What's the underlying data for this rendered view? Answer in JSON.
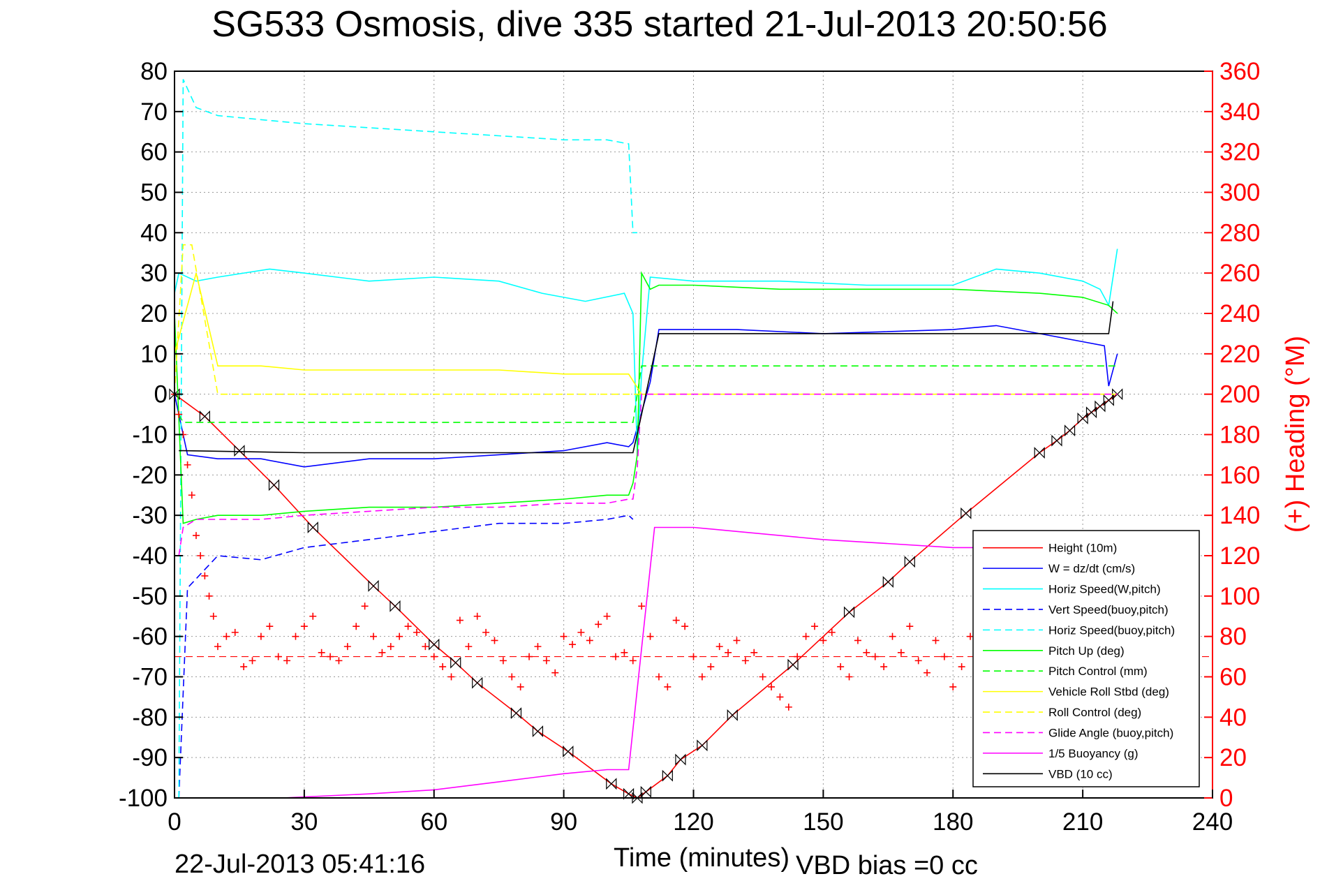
{
  "chart_data": {
    "type": "line",
    "title": "SG533 Osmosis, dive 335 started 21-Jul-2013 20:50:56",
    "xlabel": "Time (minutes)",
    "ylabel_right": "(+) Heading (°M)",
    "end_time_label": "22-Jul-2013 05:41:16",
    "vbd_bias_label": "VBD bias =0 cc",
    "xlim": [
      0,
      240
    ],
    "ylim_left": [
      -100,
      80
    ],
    "ylim_right": [
      0,
      360
    ],
    "x_ticks": [
      0,
      30,
      60,
      90,
      120,
      150,
      180,
      210,
      240
    ],
    "y_ticks_left": [
      80,
      70,
      60,
      50,
      40,
      30,
      20,
      10,
      0,
      -10,
      -20,
      -30,
      -40,
      -50,
      -60,
      -70,
      -80,
      -90,
      -100
    ],
    "y_ticks_right": [
      360,
      340,
      320,
      300,
      280,
      260,
      240,
      220,
      200,
      180,
      160,
      140,
      120,
      100,
      80,
      60,
      40,
      20,
      0
    ],
    "grid": true,
    "legend_position": "lower-right",
    "colors": {
      "red": "#ff0000",
      "blue": "#0000ff",
      "cyan": "#00ffff",
      "green": "#00ff00",
      "yellow": "#ffff00",
      "magenta": "#ff00ff",
      "black": "#000000"
    },
    "series": [
      {
        "name": "Height (10m)",
        "color": "#ff0000",
        "dash": "solid",
        "x": [
          0,
          7,
          15,
          23,
          32,
          46,
          51,
          60,
          65,
          70,
          79,
          84,
          91,
          101,
          105,
          107,
          109,
          114,
          117,
          122,
          129,
          143,
          156,
          165,
          170,
          183,
          200,
          204,
          207,
          210,
          212,
          214,
          216,
          218
        ],
        "y": [
          0,
          -5.5,
          -14,
          -22.5,
          -33,
          -47.5,
          -52.5,
          -62,
          -66.5,
          -71.5,
          -79,
          -83.5,
          -88.5,
          -96.5,
          -99,
          -100,
          -98.5,
          -94.5,
          -90.5,
          -87,
          -79.5,
          -67,
          -54,
          -46.5,
          -41.5,
          -29.5,
          -14.5,
          -11.5,
          -9,
          -6,
          -4.5,
          -3,
          -1.5,
          0
        ]
      },
      {
        "name": "W = dz/dt (cm/s)",
        "color": "#0000ff",
        "dash": "solid",
        "x": [
          0,
          1,
          3,
          10,
          20,
          30,
          45,
          60,
          75,
          90,
          100,
          105,
          106,
          110,
          112,
          120,
          130,
          150,
          180,
          190,
          200,
          210,
          215,
          216,
          218
        ],
        "y": [
          0,
          -5,
          -15,
          -16,
          -16,
          -18,
          -16,
          -16,
          -15,
          -14,
          -12,
          -13,
          -12,
          3,
          16,
          16,
          16,
          15,
          16,
          17,
          15,
          13,
          12,
          2,
          10
        ]
      },
      {
        "name": "Horiz Speed(W,pitch)",
        "color": "#00ffff",
        "dash": "solid",
        "x": [
          0,
          1,
          5,
          10,
          22,
          30,
          45,
          60,
          75,
          85,
          95,
          104,
          106,
          107,
          108,
          110,
          120,
          140,
          160,
          180,
          190,
          200,
          210,
          214,
          216,
          218
        ],
        "y": [
          25,
          30,
          28,
          29,
          31,
          30,
          28,
          29,
          28,
          25,
          23,
          25,
          20,
          -15,
          5,
          29,
          28,
          28,
          27,
          27,
          31,
          30,
          28,
          26,
          22,
          36
        ]
      },
      {
        "name": "Vert Speed(buoy,pitch)",
        "color": "#0000ff",
        "dash": "dashed",
        "x": [
          1,
          3,
          10,
          20,
          30,
          45,
          60,
          75,
          90,
          100,
          105,
          106
        ],
        "y": [
          -100,
          -48,
          -40,
          -41,
          -38,
          -36,
          -34,
          -32,
          -32,
          -31,
          -30,
          -31
        ]
      },
      {
        "name": "Horiz Speed(buoy,pitch)",
        "color": "#00ffff",
        "dash": "dashed",
        "x": [
          1,
          2,
          5,
          10,
          20,
          30,
          45,
          60,
          75,
          90,
          100,
          105,
          106,
          107
        ],
        "y": [
          -100,
          78,
          71,
          69,
          68,
          67,
          66,
          65,
          64,
          63,
          63,
          62,
          40,
          40
        ]
      },
      {
        "name": "Pitch Up (deg)",
        "color": "#00ff00",
        "dash": "solid",
        "x": [
          0,
          2,
          5,
          10,
          20,
          30,
          45,
          60,
          75,
          90,
          100,
          105,
          106,
          107,
          108,
          110,
          112,
          120,
          140,
          160,
          180,
          200,
          210,
          216,
          218
        ],
        "y": [
          20,
          -32,
          -31,
          -30,
          -30,
          -29,
          -28,
          -28,
          -27,
          -26,
          -25,
          -25,
          -22,
          -15,
          30,
          26,
          27,
          27,
          26,
          26,
          26,
          25,
          24,
          22,
          20
        ]
      },
      {
        "name": "Pitch Control (mm)",
        "color": "#00ff00",
        "dash": "dashed",
        "x": [
          1,
          2,
          10,
          30,
          60,
          90,
          106,
          108,
          110,
          130,
          160,
          200,
          218
        ],
        "y": [
          -5,
          -7,
          -7,
          -7,
          -7,
          -7,
          -7,
          7,
          7,
          7,
          7,
          7,
          7
        ]
      },
      {
        "name": "Vehicle Roll Stbd (deg)",
        "color": "#ffff00",
        "dash": "solid",
        "x": [
          0,
          5,
          10,
          20,
          30,
          45,
          60,
          75,
          90,
          100,
          105,
          108,
          110,
          120,
          150,
          180,
          200,
          210,
          215,
          218
        ],
        "y": [
          10,
          30,
          7,
          7,
          6,
          6,
          6,
          6,
          5,
          5,
          5,
          0,
          0,
          0,
          0,
          0,
          0,
          0,
          0,
          0
        ]
      },
      {
        "name": "Roll Control (deg)",
        "color": "#ffff00",
        "dash": "dashed",
        "x": [
          0,
          2,
          4,
          10,
          20,
          30,
          45,
          60,
          75,
          90,
          100,
          106,
          108,
          110,
          130,
          160,
          200,
          218
        ],
        "y": [
          0,
          37,
          37,
          0,
          0,
          0,
          0,
          0,
          0,
          0,
          0,
          0,
          0,
          0,
          0,
          0,
          0,
          0
        ]
      },
      {
        "name": "Glide Angle (buoy,pitch)",
        "color": "#ff00ff",
        "dash": "dashed",
        "x": [
          1,
          2,
          5,
          10,
          20,
          30,
          45,
          60,
          75,
          90,
          100,
          105,
          106,
          107,
          108,
          110,
          130,
          160,
          200,
          218
        ],
        "y": [
          -40,
          -33,
          -31,
          -31,
          -31,
          -30,
          -29,
          -28,
          -28,
          -27,
          -27,
          -26,
          -26,
          -18,
          0,
          0,
          0,
          0,
          0,
          0
        ]
      },
      {
        "name": "1/5 Buoyancy (g)",
        "color": "#ff00ff",
        "dash": "solid",
        "x": [
          25,
          45,
          60,
          75,
          90,
          100,
          105,
          108,
          111,
          120,
          150,
          180,
          186
        ],
        "y": [
          -100,
          -99,
          -98,
          -96,
          -94,
          -93,
          -93,
          -63,
          -33,
          -33,
          -36,
          -38,
          -38
        ]
      },
      {
        "name": "VBD (10 cc)",
        "color": "#000000",
        "dash": "solid",
        "x": [
          1,
          2,
          30,
          60,
          90,
          106,
          108,
          112,
          130,
          160,
          200,
          216,
          217
        ],
        "y": [
          -14,
          -14,
          -14.5,
          -14.5,
          -14.5,
          -14.5,
          -5,
          15,
          15,
          15,
          15,
          15,
          23
        ]
      }
    ],
    "heading_series": {
      "name": "(+) Heading",
      "color": "#ff0000",
      "x": [
        0,
        1,
        2,
        3,
        4,
        5,
        6,
        7,
        8,
        9,
        10,
        12,
        14,
        16,
        18,
        20,
        22,
        24,
        26,
        28,
        30,
        32,
        34,
        36,
        38,
        40,
        42,
        44,
        46,
        48,
        50,
        52,
        54,
        56,
        58,
        60,
        62,
        64,
        66,
        68,
        70,
        72,
        74,
        76,
        78,
        80,
        82,
        84,
        86,
        88,
        90,
        92,
        94,
        96,
        98,
        100,
        102,
        104,
        106,
        108,
        110,
        112,
        114,
        116,
        118,
        120,
        122,
        124,
        126,
        128,
        130,
        132,
        134,
        136,
        138,
        140,
        142,
        144,
        146,
        148,
        150,
        152,
        154,
        156,
        158,
        160,
        162,
        164,
        166,
        168,
        170,
        172,
        174,
        176,
        178,
        180,
        182,
        184
      ],
      "y": [
        200,
        190,
        180,
        165,
        150,
        130,
        120,
        110,
        100,
        90,
        75,
        80,
        82,
        65,
        68,
        80,
        85,
        70,
        68,
        80,
        85,
        90,
        72,
        70,
        68,
        75,
        85,
        95,
        80,
        72,
        75,
        80,
        85,
        82,
        75,
        70,
        65,
        60,
        88,
        75,
        90,
        82,
        78,
        68,
        60,
        55,
        70,
        75,
        68,
        62,
        80,
        76,
        82,
        78,
        86,
        90,
        70,
        72,
        68,
        95,
        80,
        60,
        55,
        88,
        85,
        70,
        60,
        65,
        75,
        72,
        78,
        68,
        72,
        60,
        55,
        50,
        45,
        70,
        80,
        85,
        78,
        82,
        65,
        60,
        78,
        72,
        70,
        65,
        80,
        72,
        85,
        68,
        62,
        78,
        70,
        55,
        65,
        80
      ]
    }
  }
}
